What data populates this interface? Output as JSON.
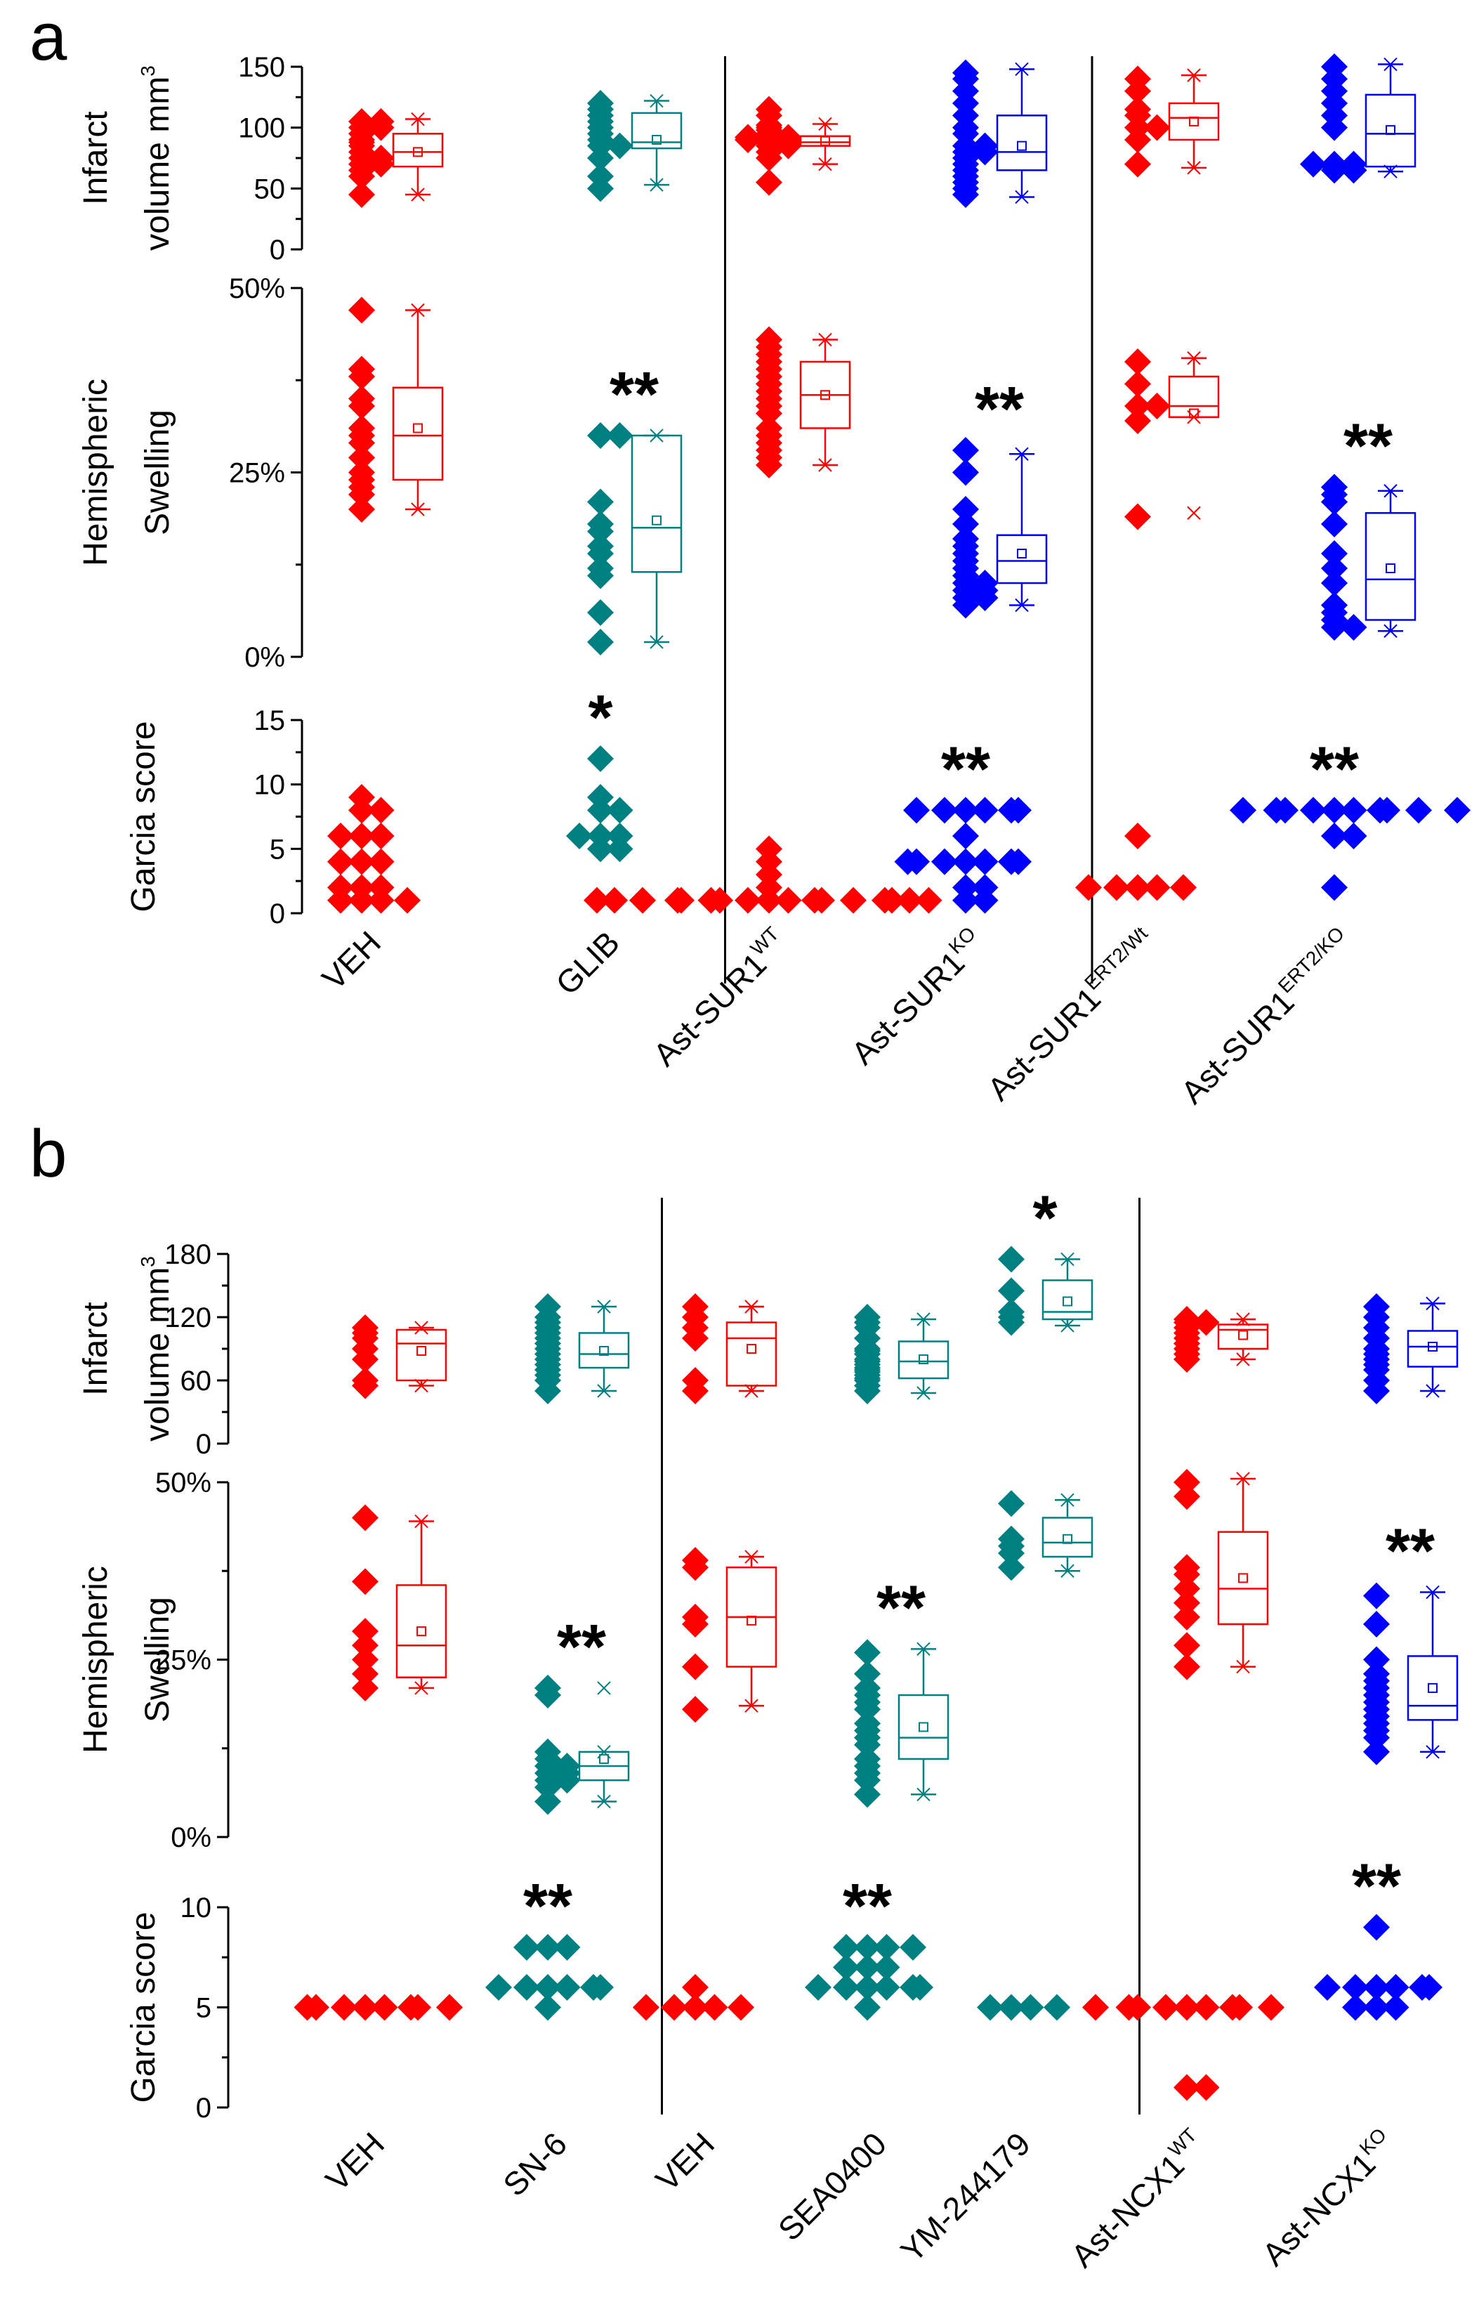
{
  "figure": {
    "panels": [
      "a",
      "b"
    ],
    "row_labels": {
      "infarct_line1": "Infarct",
      "infarct_line2": "volume mm",
      "infarct_sup": "3",
      "swelling_line1": "Hemispheric",
      "swelling_line2": "Swelling",
      "garcia": "Garcia score"
    }
  },
  "colors": {
    "red": "#ff0000",
    "teal": "#008080",
    "blue": "#0000ff",
    "axis": "#000000"
  },
  "icons": {
    "marker": "diamond-marker-icon",
    "mean": "square-mean-icon",
    "extreme": "cross-extreme-icon"
  },
  "chart_data": [
    {
      "type": "scatter",
      "panel": "a",
      "title": "",
      "groups": [
        {
          "label": "VEH",
          "sup": "",
          "color": "red"
        },
        {
          "label": "GLIB",
          "sup": "",
          "color": "teal"
        },
        {
          "label": "Ast-SUR1",
          "sup": "WT",
          "color": "red"
        },
        {
          "label": "Ast-SUR1",
          "sup": "KO",
          "color": "blue"
        },
        {
          "label": "Ast-SUR1",
          "sup": "ERT2/Wt",
          "color": "red"
        },
        {
          "label": "Ast-SUR1",
          "sup": "ERT2/KO",
          "color": "blue"
        }
      ],
      "separators_after_group": [
        1,
        3
      ],
      "rows": [
        {
          "name": "infarct",
          "ylim": [
            0,
            150
          ],
          "ticks": [
            0,
            50,
            100,
            150
          ],
          "tick_labels": [
            "0",
            "50",
            "100",
            "150"
          ],
          "values": [
            [
              60,
              75,
              85,
              95,
              105,
              100,
              45,
              70,
              90,
              80,
              65,
              100,
              75,
              88,
              105,
              70
            ],
            [
              50,
              60,
              85,
              90,
              110,
              120,
              115,
              95,
              100,
              85,
              105,
              75
            ],
            [
              55,
              80,
              90,
              100,
              85,
              95,
              90,
              88,
              92,
              110,
              98,
              87,
              90,
              94,
              85,
              75,
              92,
              102,
              88,
              92,
              115
            ],
            [
              45,
              50,
              65,
              80,
              100,
              130,
              145,
              55,
              75,
              85,
              95,
              110,
              120,
              140,
              70,
              85,
              60,
              80
            ],
            [
              70,
              100,
              110,
              130,
              140,
              90,
              115,
              100
            ],
            [
              65,
              70,
              70,
              68,
              70,
              100,
              110,
              130,
              150,
              140,
              120,
              65
            ]
          ],
          "boxes": [
            {
              "q1": 68,
              "median": 80,
              "q3": 95,
              "wlo": 45,
              "whi": 107,
              "mean": 80
            },
            {
              "q1": 83,
              "median": 88,
              "q3": 112,
              "wlo": 53,
              "whi": 122,
              "mean": 90
            },
            {
              "q1": 85,
              "median": 88,
              "q3": 93,
              "wlo": 70,
              "whi": 103,
              "mean": 89
            },
            {
              "q1": 65,
              "median": 80,
              "q3": 110,
              "wlo": 43,
              "whi": 148,
              "mean": 85
            },
            {
              "q1": 90,
              "median": 108,
              "q3": 120,
              "wlo": 67,
              "whi": 143,
              "mean": 105
            },
            {
              "q1": 68,
              "median": 95,
              "q3": 127,
              "wlo": 64,
              "whi": 152,
              "mean": 98
            }
          ],
          "stars": [
            "",
            "",
            "",
            "",
            "",
            ""
          ]
        },
        {
          "name": "swelling",
          "ylim": [
            0,
            50
          ],
          "ticks": [
            0,
            25,
            50
          ],
          "tick_labels": [
            "0%",
            "25%",
            "50%"
          ],
          "values": [
            [
              47,
              39,
              38,
              35,
              34,
              30,
              29,
              27,
              25,
              24,
              23,
              22,
              20,
              31
            ],
            [
              30,
              30,
              21,
              18,
              17,
              14,
              12,
              11,
              6,
              2,
              15
            ],
            [
              43,
              42,
              41,
              40,
              39,
              38,
              37,
              35,
              34,
              33,
              31,
              30,
              29,
              28,
              27,
              26,
              36
            ],
            [
              28,
              25,
              20,
              18,
              16,
              15,
              14,
              13,
              12,
              10,
              9,
              8,
              8,
              7,
              11,
              9,
              10
            ],
            [
              40,
              37,
              34,
              34,
              32,
              19
            ],
            [
              23,
              22,
              21,
              18,
              14,
              12,
              10,
              7,
              5,
              4,
              4,
              6
            ]
          ],
          "boxes": [
            {
              "q1": 24,
              "median": 30,
              "q3": 36.5,
              "wlo": 20,
              "whi": 47,
              "mean": 31
            },
            {
              "q1": 11.5,
              "median": 17.5,
              "q3": 30,
              "wlo": 2,
              "whi": 30,
              "mean": 18.5
            },
            {
              "q1": 31,
              "median": 35.5,
              "q3": 40,
              "wlo": 26,
              "whi": 43,
              "mean": 35.5
            },
            {
              "q1": 10,
              "median": 13,
              "q3": 16.5,
              "wlo": 7,
              "whi": 27.5,
              "mean": 14
            },
            {
              "q1": 32.5,
              "median": 34,
              "q3": 38,
              "wlo": 32.5,
              "whi": 40.5,
              "mean": 33,
              "outlier": 19.5
            },
            {
              "q1": 5,
              "median": 10.5,
              "q3": 19.5,
              "wlo": 3.5,
              "whi": 22.5,
              "mean": 12
            }
          ],
          "stars": [
            "",
            "**",
            "",
            "**",
            "",
            "**"
          ]
        },
        {
          "name": "garcia",
          "ylim": [
            0,
            15
          ],
          "ticks": [
            0,
            5,
            10,
            15
          ],
          "tick_labels": [
            "0",
            "5",
            "10",
            "15"
          ],
          "values": [
            [
              1,
              1,
              1,
              1,
              2,
              2,
              2,
              4,
              4,
              4,
              6,
              6,
              6,
              8,
              8,
              9
            ],
            [
              5,
              5,
              6,
              6,
              6,
              8,
              8,
              9,
              12
            ],
            [
              1,
              1,
              1,
              1,
              1,
              1,
              1,
              1,
              1,
              1,
              1,
              1,
              1,
              1,
              1,
              1,
              1,
              2,
              3,
              4,
              5
            ],
            [
              1,
              1,
              2,
              2,
              4,
              4,
              4,
              4,
              4,
              4,
              4,
              6,
              8,
              8,
              8,
              8,
              8,
              8
            ],
            [
              2,
              2,
              2,
              2,
              2,
              6
            ],
            [
              2,
              6,
              6,
              8,
              8,
              8,
              8,
              8,
              8,
              8,
              8,
              8,
              8
            ]
          ],
          "boxes": [],
          "stars": [
            "",
            "*",
            "",
            "**",
            "",
            "**"
          ]
        }
      ]
    },
    {
      "type": "scatter",
      "panel": "b",
      "title": "",
      "groups": [
        {
          "label": "VEH",
          "sup": "",
          "color": "red"
        },
        {
          "label": "SN-6",
          "sup": "",
          "color": "teal"
        },
        {
          "label": "VEH",
          "sup": "",
          "color": "red"
        },
        {
          "label": "SEA0400",
          "sup": "",
          "color": "teal"
        },
        {
          "label": "YM-244179",
          "sup": "",
          "color": "teal"
        },
        {
          "label": "Ast-NCX1",
          "sup": "WT",
          "color": "red"
        },
        {
          "label": "Ast-NCX1",
          "sup": "KO",
          "color": "blue"
        }
      ],
      "separators_after_group": [
        1,
        4
      ],
      "rows": [
        {
          "name": "infarct",
          "ylim": [
            0,
            180
          ],
          "ticks": [
            0,
            60,
            120,
            180
          ],
          "tick_labels": [
            "0",
            "60",
            "120",
            "180"
          ],
          "values": [
            [
              55,
              60,
              80,
              90,
              100,
              105,
              110
            ],
            [
              50,
              60,
              70,
              80,
              85,
              90,
              95,
              100,
              105,
              110,
              115,
              120,
              130,
              75,
              65
            ],
            [
              50,
              60,
              100,
              110,
              120,
              130
            ],
            [
              50,
              55,
              60,
              65,
              70,
              75,
              80,
              85,
              90,
              100,
              110,
              115,
              120,
              62,
              68,
              72,
              78,
              88
            ],
            [
              115,
              120,
              145,
              175,
              125
            ],
            [
              80,
              85,
              90,
              100,
              105,
              110,
              115,
              115,
              118,
              95
            ],
            [
              50,
              60,
              70,
              80,
              90,
              100,
              110,
              120,
              130,
              75,
              85
            ]
          ],
          "boxes": [
            {
              "q1": 60,
              "median": 95,
              "q3": 108,
              "wlo": 55,
              "whi": 110,
              "mean": 88
            },
            {
              "q1": 72,
              "median": 85,
              "q3": 105,
              "wlo": 50,
              "whi": 130,
              "mean": 88
            },
            {
              "q1": 55,
              "median": 100,
              "q3": 115,
              "wlo": 50,
              "whi": 130,
              "mean": 90
            },
            {
              "q1": 62,
              "median": 78,
              "q3": 97,
              "wlo": 48,
              "whi": 118,
              "mean": 80
            },
            {
              "q1": 118,
              "median": 125,
              "q3": 155,
              "wlo": 112,
              "whi": 175,
              "mean": 135
            },
            {
              "q1": 90,
              "median": 108,
              "q3": 113,
              "wlo": 80,
              "whi": 118,
              "mean": 103
            },
            {
              "q1": 73,
              "median": 92,
              "q3": 107,
              "wlo": 50,
              "whi": 133,
              "mean": 92
            }
          ],
          "stars": [
            "",
            "",
            "",
            "",
            "*",
            "",
            ""
          ]
        },
        {
          "name": "swelling",
          "ylim": [
            0,
            50
          ],
          "ticks": [
            0,
            25,
            50
          ],
          "tick_labels": [
            "0%",
            "25%",
            "50%"
          ],
          "values": [
            [
              45,
              36,
              29,
              27,
              25,
              23,
              21
            ],
            [
              21,
              20,
              12,
              11,
              10,
              9,
              8,
              8,
              7,
              5,
              10,
              9
            ],
            [
              39,
              38,
              31,
              30,
              24,
              18
            ],
            [
              26,
              23,
              21,
              20,
              18,
              15,
              14,
              13,
              11,
              10,
              9,
              8,
              6,
              16,
              19
            ],
            [
              47,
              42,
              41,
              38,
              40
            ],
            [
              50,
              48,
              38,
              37,
              35,
              33,
              31,
              27,
              24
            ],
            [
              34,
              30,
              25,
              23,
              21,
              20,
              19,
              18,
              16,
              15,
              14,
              12,
              17,
              22
            ]
          ],
          "boxes": [
            {
              "q1": 22.5,
              "median": 27,
              "q3": 35.5,
              "wlo": 21,
              "whi": 44.5,
              "mean": 29
            },
            {
              "q1": 8,
              "median": 10,
              "q3": 12,
              "wlo": 5,
              "whi": 12,
              "mean": 11,
              "outlier": 21
            },
            {
              "q1": 24,
              "median": 31,
              "q3": 38,
              "wlo": 18.5,
              "whi": 39.5,
              "mean": 30.5
            },
            {
              "q1": 11,
              "median": 14,
              "q3": 20,
              "wlo": 6,
              "whi": 26.5,
              "mean": 15.5
            },
            {
              "q1": 39.5,
              "median": 41.5,
              "q3": 45,
              "wlo": 37.5,
              "whi": 47.5,
              "mean": 42
            },
            {
              "q1": 30,
              "median": 35,
              "q3": 43,
              "wlo": 24,
              "whi": 50.5,
              "mean": 36.5
            },
            {
              "q1": 16.5,
              "median": 18.5,
              "q3": 25.5,
              "wlo": 12,
              "whi": 34.5,
              "mean": 21
            }
          ],
          "stars": [
            "",
            "**",
            "",
            "**",
            "",
            "",
            "**"
          ]
        },
        {
          "name": "garcia",
          "ylim": [
            0,
            10
          ],
          "ticks": [
            0,
            5,
            10
          ],
          "tick_labels": [
            "0",
            "5",
            "10"
          ],
          "values": [
            [
              5,
              5,
              5,
              5,
              5,
              5,
              5,
              5
            ],
            [
              5,
              6,
              6,
              6,
              6,
              6,
              6,
              8,
              8,
              8
            ],
            [
              5,
              5,
              5,
              5,
              5,
              6
            ],
            [
              5,
              6,
              6,
              6,
              6,
              6,
              7,
              7,
              7,
              8,
              8,
              8,
              8,
              6
            ],
            [
              5,
              5,
              5,
              5
            ],
            [
              1,
              1,
              5,
              5,
              5,
              5,
              5,
              5,
              5,
              5,
              5
            ],
            [
              5,
              5,
              5,
              6,
              6,
              6,
              6,
              6,
              6,
              9
            ]
          ],
          "boxes": [],
          "stars": [
            "",
            "**",
            "",
            "**",
            "",
            "",
            "**"
          ]
        }
      ]
    }
  ]
}
